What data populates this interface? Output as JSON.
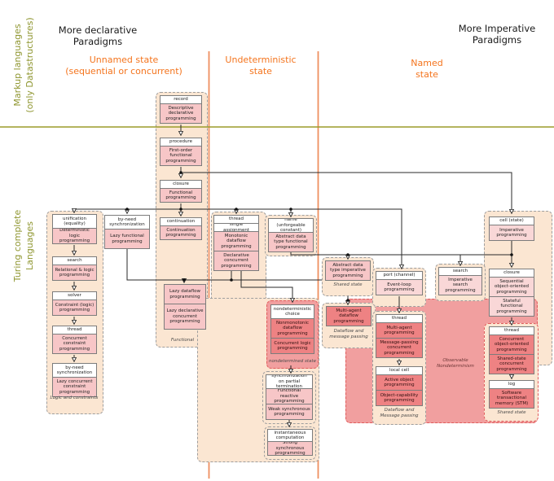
{
  "headers": {
    "more_declarative": "More declarative\nParadigms",
    "more_imperative": "More Imperative\nParadigms",
    "unnamed_state": "Unnamed state\n(sequential or concurrent)",
    "undeterministic_state": "Undeterministic\nstate",
    "named_state": "Named\nstate",
    "markup_languages": "Markup languages\n(only Datastructures)",
    "turing_complete": "Turing complete\nLanguages"
  },
  "colors": {
    "accent_orange": "#f4741d",
    "olive": "#8f9630",
    "peach_region": "#fbe6d2",
    "pink_box": "#f7c6c7",
    "light_pink_box": "#f9d7d7",
    "dark_pink_box": "#ee8283",
    "salmon_region": "#f19f9f",
    "red_dashed_border": "#e05c5c"
  },
  "groups": {
    "record": {
      "boxes": [
        {
          "text": "record"
        },
        {
          "text": "Descriptive declarative programming"
        }
      ]
    },
    "procedure": {
      "boxes": [
        {
          "text": "procedure"
        },
        {
          "text": "First-order functional programming"
        }
      ]
    },
    "closure": {
      "boxes": [
        {
          "text": "closure"
        },
        {
          "text": "Functional programming"
        }
      ]
    },
    "unification": {
      "boxes": [
        {
          "text": "unification (equality)"
        },
        {
          "text": "Deterministic logic programming"
        }
      ]
    },
    "search_left": {
      "boxes": [
        {
          "text": "search"
        },
        {
          "text": "Relational & logic programming"
        }
      ]
    },
    "solver": {
      "boxes": [
        {
          "text": "solver"
        },
        {
          "text": "Constraint (logic) programming"
        }
      ]
    },
    "thread_left": {
      "boxes": [
        {
          "text": "thread"
        },
        {
          "text": "Concurrent constraint programming"
        }
      ]
    },
    "byneed_left": {
      "boxes": [
        {
          "text": "by-need synchronization"
        },
        {
          "text": "Lazy concurrent constraint programming"
        }
      ]
    },
    "byneed_col2": {
      "boxes": [
        {
          "text": "by-need synchronization"
        },
        {
          "text": "Lazy functional programming"
        }
      ]
    },
    "continuation": {
      "boxes": [
        {
          "text": "continuation"
        },
        {
          "text": "Continuation programming"
        }
      ]
    },
    "lazy_dataflow": {
      "boxes": [
        {
          "text": "Lazy dataflow programming"
        },
        {
          "text": "Lazy declarative concurrent programming"
        }
      ]
    },
    "thread_mid": {
      "boxes": [
        {
          "text": "thread"
        },
        {
          "text": "single assignment"
        },
        {
          "text": "Monotonic dataflow programming"
        },
        {
          "text": "Declarative concurrent programming"
        }
      ]
    },
    "name_group": {
      "boxes": [
        {
          "text": "name (unforgeable constant)"
        },
        {
          "text": "Abstract data type functional programming"
        }
      ]
    },
    "nondet": {
      "boxes": [
        {
          "text": "nondeterministic choice"
        },
        {
          "text": "Nonmonotonic dataflow programming"
        },
        {
          "text": "Concurrent logic programming"
        }
      ]
    },
    "sync_partial": {
      "boxes": [
        {
          "text": "synchronization on partial termination"
        },
        {
          "text": "Functional reactive programming"
        },
        {
          "text": "Weak synchronous programming"
        }
      ]
    },
    "instantaneous": {
      "boxes": [
        {
          "text": "instantaneous computation"
        },
        {
          "text": "Strong synchronous programming"
        }
      ]
    },
    "adt_imp": {
      "boxes": [
        {
          "text": "Abstract data type imperative programming"
        }
      ]
    },
    "madf": {
      "boxes": [
        {
          "text": "Multi-agent dataflow programming"
        }
      ]
    },
    "port": {
      "boxes": [
        {
          "text": "port (channel)"
        },
        {
          "text": "Event-loop programming"
        }
      ]
    },
    "thread_rmid": {
      "boxes": [
        {
          "text": "thread"
        },
        {
          "text": "Multi-agent programming"
        },
        {
          "text": "Message-passing concurrent programming"
        }
      ]
    },
    "local_cell": {
      "boxes": [
        {
          "text": "local cell"
        },
        {
          "text": "Active object programming"
        },
        {
          "text": "Object-capability programming"
        }
      ]
    },
    "search_right": {
      "boxes": [
        {
          "text": "search"
        },
        {
          "text": "Imperative search programming"
        }
      ]
    },
    "cell": {
      "boxes": [
        {
          "text": "cell (state)"
        },
        {
          "text": "Imperative programming"
        }
      ]
    },
    "closure_right": {
      "boxes": [
        {
          "text": "closure"
        },
        {
          "text": "Sequential object-oriented programming"
        },
        {
          "text": "Stateful functional programming"
        }
      ]
    },
    "thread_right": {
      "boxes": [
        {
          "text": "thread"
        },
        {
          "text": "Concurrent object-oriented programming"
        },
        {
          "text": "Shared-state concurrent programming"
        }
      ]
    },
    "log": {
      "boxes": [
        {
          "text": "log"
        },
        {
          "text": "Software transactional memory (STM)"
        }
      ]
    }
  },
  "labels": {
    "logic_constraints": "Logic and constraints",
    "functional": "Functional",
    "nondetermined_state": "nondetermined state",
    "shared_state_adt": "Shared state",
    "dataflow_message_passing_small": "Dataflow and message passing",
    "dataflow_message_passing_right": "Dataflow and Message passing",
    "observable_nondeterminism": "Observable Nondeterminism",
    "shared_state_right": "Shared state"
  }
}
